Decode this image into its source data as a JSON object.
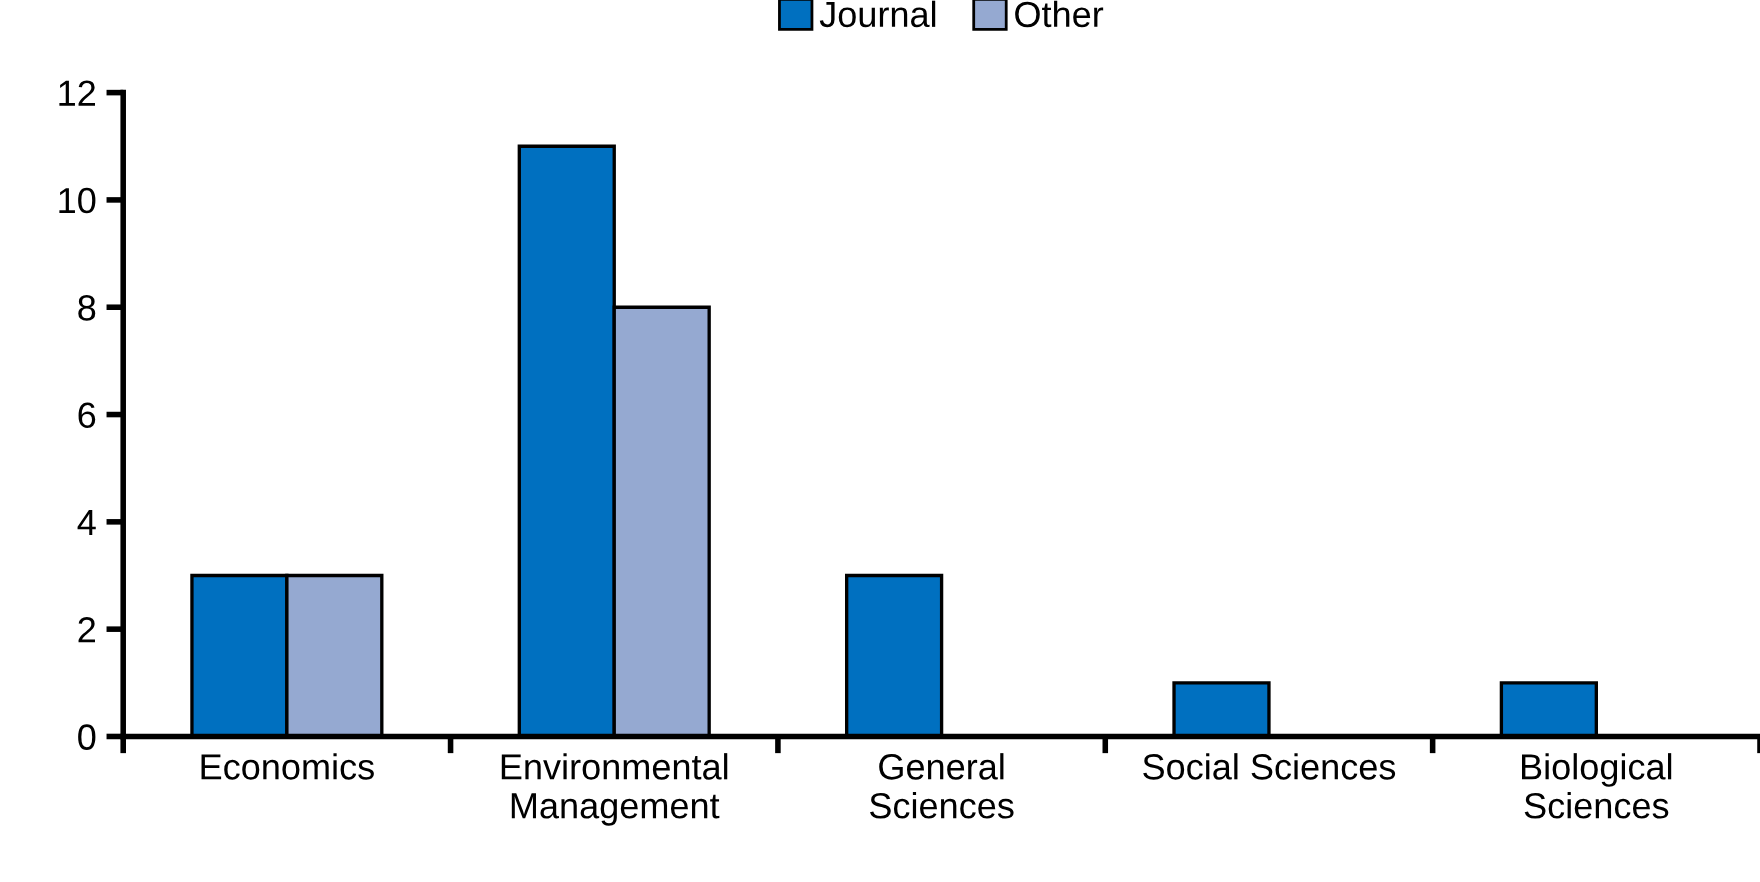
{
  "chart_data": {
    "type": "bar",
    "categories": [
      "Economics",
      "Environmental\nManagement",
      "General\nSciences",
      "Social Sciences",
      "Biological\nSciences"
    ],
    "series": [
      {
        "name": "Journal",
        "color": "#0070c0",
        "values": [
          3,
          11,
          3,
          1,
          1
        ]
      },
      {
        "name": "Other",
        "color": "#95a9d1",
        "values": [
          3,
          8,
          null,
          null,
          null
        ]
      }
    ],
    "ylim": [
      0,
      12
    ],
    "yticks": [
      0,
      2,
      4,
      6,
      8,
      10,
      12
    ],
    "grid": false,
    "legend": "top"
  }
}
